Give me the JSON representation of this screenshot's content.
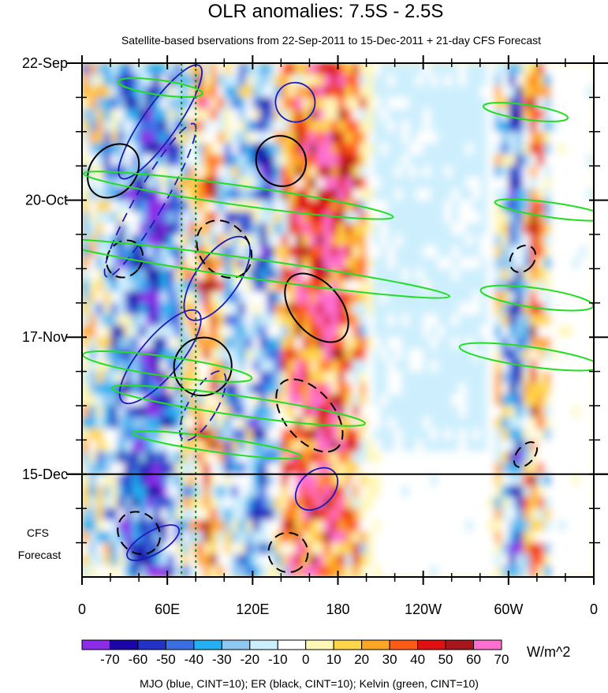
{
  "chart_data": {
    "type": "heatmap",
    "title": "OLR anomalies: 7.5S - 2.5S",
    "subtitle": "Satellite-based bservations from 22-Sep-2011 to 15-Dec-2011 + 21-day CFS Forecast",
    "x_ticks": [
      "0",
      "60E",
      "120E",
      "180",
      "120W",
      "60W",
      "0"
    ],
    "x_tick_values": [
      0,
      60,
      120,
      180,
      240,
      300,
      360
    ],
    "x_range": [
      0,
      360
    ],
    "y_ticks": [
      "22-Sep",
      "20-Oct",
      "17-Nov",
      "15-Dec"
    ],
    "y_tick_days": [
      0,
      28,
      56,
      84
    ],
    "y_range_days": [
      0,
      105
    ],
    "observation_end_day": 84,
    "forecast_label": [
      "CFS",
      "Forecast"
    ],
    "reference_longitudes": [
      70,
      80
    ],
    "colorbar": {
      "labels": [
        "-70",
        "-60",
        "-50",
        "-40",
        "-30",
        "-20",
        "-10",
        "0",
        "10",
        "20",
        "30",
        "40",
        "50",
        "60",
        "70"
      ],
      "colors": [
        "#8c2bea",
        "#1b05a8",
        "#2231c6",
        "#3a6fe4",
        "#24b0f0",
        "#8ec8f2",
        "#cdeffd",
        "#ffffff",
        "#fff7b8",
        "#ffd54a",
        "#ffa626",
        "#ff5a16",
        "#e01010",
        "#a6161a",
        "#ff6fd2"
      ],
      "units": "W/m^2"
    },
    "footnote": "MJO (blue, CINT=10); ER (black, CINT=10); Kelvin (green, CINT=10)",
    "anomaly_bands": [
      {
        "lon": 30,
        "width": 12,
        "value": -35
      },
      {
        "lon": 48,
        "width": 10,
        "value": -55
      },
      {
        "lon": 62,
        "width": 10,
        "value": -20
      },
      {
        "lon": 90,
        "width": 10,
        "value": 35
      },
      {
        "lon": 105,
        "width": 10,
        "value": -25
      },
      {
        "lon": 128,
        "width": 10,
        "value": -40
      },
      {
        "lon": 152,
        "width": 12,
        "value": 45
      },
      {
        "lon": 172,
        "width": 12,
        "value": 60
      },
      {
        "lon": 188,
        "width": 12,
        "value": 25
      },
      {
        "lon": 305,
        "width": 6,
        "value": -45
      },
      {
        "lon": 318,
        "width": 6,
        "value": 40
      }
    ],
    "mjo_contours": [
      {
        "lon": 55,
        "day": 12,
        "rx": 12,
        "ry": 14,
        "angle": 35,
        "dash": false
      },
      {
        "lon": 48,
        "day": 28,
        "rx": 10,
        "ry": 18,
        "angle": 30,
        "dash": true
      },
      {
        "lon": 95,
        "day": 44,
        "rx": 15,
        "ry": 10,
        "angle": 35,
        "dash": false
      },
      {
        "lon": 55,
        "day": 60,
        "rx": 14,
        "ry": 12,
        "angle": 40,
        "dash": false
      },
      {
        "lon": 85,
        "day": 70,
        "rx": 10,
        "ry": 8,
        "angle": 30,
        "dash": true
      },
      {
        "lon": 50,
        "day": 98,
        "rx": 8,
        "ry": 6,
        "angle": 60,
        "dash": false
      },
      {
        "lon": 150,
        "day": 8,
        "rx": 14,
        "ry": 4,
        "angle": 40,
        "dash": false
      },
      {
        "lon": 165,
        "day": 87,
        "rx": 12,
        "ry": 5,
        "angle": 45,
        "dash": false
      }
    ],
    "er_contours": [
      {
        "lon": 22,
        "day": 22,
        "rx": 16,
        "ry": 6,
        "angle": 40,
        "dash": false
      },
      {
        "lon": 30,
        "day": 40,
        "rx": 12,
        "ry": 4,
        "angle": 40,
        "dash": true
      },
      {
        "lon": 85,
        "day": 62,
        "rx": 20,
        "ry": 6,
        "angle": 40,
        "dash": false
      },
      {
        "lon": 140,
        "day": 20,
        "rx": 18,
        "ry": 5,
        "angle": 50,
        "dash": false
      },
      {
        "lon": 165,
        "day": 50,
        "rx": 28,
        "ry": 5,
        "angle": 50,
        "dash": false
      },
      {
        "lon": 100,
        "day": 38,
        "rx": 22,
        "ry": 5,
        "angle": 50,
        "dash": true
      },
      {
        "lon": 160,
        "day": 72,
        "rx": 30,
        "ry": 5,
        "angle": 50,
        "dash": true
      },
      {
        "lon": 40,
        "day": 96,
        "rx": 16,
        "ry": 4,
        "angle": 45,
        "dash": true
      },
      {
        "lon": 145,
        "day": 100,
        "rx": 14,
        "ry": 4,
        "angle": 55,
        "dash": true
      },
      {
        "lon": 310,
        "day": 40,
        "rx": 8,
        "ry": 3,
        "angle": 40,
        "dash": true
      },
      {
        "lon": 312,
        "day": 80,
        "rx": 6,
        "ry": 3,
        "angle": 40,
        "dash": true
      }
    ],
    "kelvin_contours": [
      {
        "lon": 55,
        "day": 5,
        "rx": 30,
        "ry": 1.5,
        "angle": 8
      },
      {
        "lon": 110,
        "day": 27,
        "rx": 110,
        "ry": 2,
        "angle": 8
      },
      {
        "lon": 120,
        "day": 42,
        "rx": 140,
        "ry": 2,
        "angle": 8
      },
      {
        "lon": 60,
        "day": 62,
        "rx": 60,
        "ry": 2,
        "angle": 8
      },
      {
        "lon": 110,
        "day": 70,
        "rx": 90,
        "ry": 2,
        "angle": 8
      },
      {
        "lon": 95,
        "day": 78,
        "rx": 60,
        "ry": 1.5,
        "angle": 8
      },
      {
        "lon": 330,
        "day": 30,
        "rx": 40,
        "ry": 1.5,
        "angle": 8
      },
      {
        "lon": 320,
        "day": 48,
        "rx": 40,
        "ry": 2,
        "angle": 8
      },
      {
        "lon": 315,
        "day": 60,
        "rx": 50,
        "ry": 2,
        "angle": 8
      },
      {
        "lon": 312,
        "day": 10,
        "rx": 30,
        "ry": 1.5,
        "angle": 8
      }
    ]
  }
}
